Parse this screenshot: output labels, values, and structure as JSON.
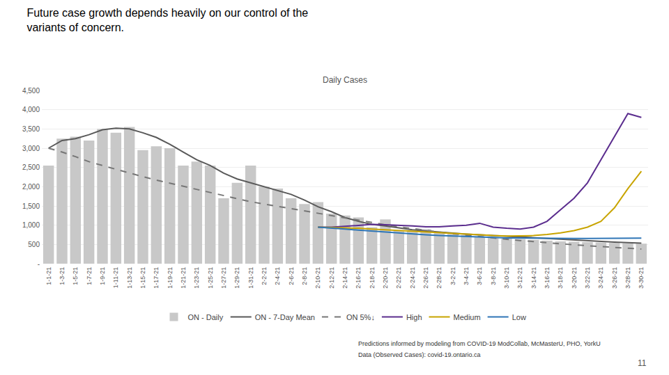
{
  "chart_data": {
    "type": "bar",
    "title": [
      "Future case growth depends heavily on our control of the",
      "variants of concern."
    ],
    "subtitle": "Daily Cases",
    "annotations": [
      "Predictions informed by modeling from COVID-19 ModCollab, McMasterU, PHO, YorkU",
      "Data (Observed Cases): covid-19.ontario.ca",
      "11"
    ],
    "categories": [
      "1-1-21",
      "1-3-21",
      "1-5-21",
      "1-7-21",
      "1-9-21",
      "1-11-21",
      "1-13-21",
      "1-15-21",
      "1-17-21",
      "1-19-21",
      "1-21-21",
      "1-23-21",
      "1-25-21",
      "1-27-21",
      "1-29-21",
      "1-31-21",
      "2-2-21",
      "2-4-21",
      "2-6-21",
      "2-8-21",
      "2-10-21",
      "2-12-21",
      "2-14-21",
      "2-16-21",
      "2-18-21",
      "2-20-21",
      "2-22-21",
      "2-24-21",
      "2-26-21",
      "2-28-21",
      "3-2-21",
      "3-4-21",
      "3-6-21",
      "3-8-21",
      "3-10-21",
      "3-12-21",
      "3-14-21",
      "3-16-21",
      "3-18-21",
      "3-20-21",
      "3-22-21",
      "3-24-21",
      "3-26-21",
      "3-28-21",
      "3-30-21"
    ],
    "series": [
      {
        "name": "ON - Daily",
        "type": "bar",
        "color": "#c8c8c8",
        "values": [
          2550,
          3250,
          3300,
          3200,
          3500,
          3400,
          3550,
          2950,
          3050,
          3000,
          2550,
          2650,
          2550,
          1700,
          2100,
          2550,
          2000,
          1950,
          1700,
          1550,
          1600,
          1300,
          1250,
          1200,
          950,
          1150,
          850,
          850,
          900,
          800,
          780,
          750,
          700,
          680,
          650,
          640,
          620,
          600,
          580,
          570,
          560,
          550,
          540,
          530,
          520
        ]
      },
      {
        "name": "ON - 7-Day Mean",
        "type": "line",
        "color": "#595959",
        "values": [
          3000,
          3200,
          3250,
          3350,
          3480,
          3520,
          3500,
          3400,
          3280,
          3100,
          2900,
          2700,
          2550,
          2350,
          2200,
          2100,
          2000,
          1900,
          1800,
          1650,
          1480,
          1350,
          1200,
          1100,
          1020,
          980,
          930,
          880,
          850,
          820,
          800,
          770,
          750,
          730,
          710,
          690,
          670,
          650,
          630,
          610,
          590,
          575,
          560,
          545,
          535
        ]
      },
      {
        "name": "ON 5%↓",
        "type": "line",
        "line_style": "dashed",
        "color": "#767676",
        "values": [
          3000,
          2900,
          2780,
          2650,
          2550,
          2450,
          2350,
          2260,
          2170,
          2090,
          2010,
          1920,
          1840,
          1760,
          1690,
          1610,
          1550,
          1490,
          1420,
          1360,
          1300,
          1240,
          1180,
          1120,
          1060,
          1010,
          960,
          910,
          865,
          820,
          778,
          740,
          703,
          668,
          634,
          602,
          572,
          543,
          516,
          490,
          466,
          443,
          421,
          400,
          380
        ]
      },
      {
        "name": "High",
        "type": "line",
        "color": "#5b2d8e",
        "values": [
          null,
          null,
          null,
          null,
          null,
          null,
          null,
          null,
          null,
          null,
          null,
          null,
          null,
          null,
          null,
          null,
          null,
          null,
          null,
          null,
          950,
          950,
          970,
          1000,
          1020,
          1010,
          1000,
          980,
          960,
          960,
          980,
          1000,
          1050,
          950,
          920,
          900,
          950,
          1100,
          1400,
          1700,
          2100,
          2700,
          3300,
          3900,
          3800
        ]
      },
      {
        "name": "Medium",
        "type": "line",
        "color": "#c8a400",
        "values": [
          null,
          null,
          null,
          null,
          null,
          null,
          null,
          null,
          null,
          null,
          null,
          null,
          null,
          null,
          null,
          null,
          null,
          null,
          null,
          null,
          950,
          940,
          940,
          920,
          900,
          880,
          860,
          840,
          820,
          800,
          780,
          760,
          750,
          730,
          720,
          720,
          730,
          760,
          800,
          860,
          950,
          1100,
          1450,
          1950,
          2400
        ]
      },
      {
        "name": "Low",
        "type": "line",
        "color": "#2e75b6",
        "values": [
          null,
          null,
          null,
          null,
          null,
          null,
          null,
          null,
          null,
          null,
          null,
          null,
          null,
          null,
          null,
          null,
          null,
          null,
          null,
          null,
          950,
          930,
          900,
          870,
          845,
          815,
          790,
          770,
          750,
          730,
          715,
          700,
          690,
          680,
          670,
          665,
          660,
          658,
          655,
          655,
          655,
          655,
          658,
          660,
          665
        ]
      }
    ],
    "ylim": [
      0,
      4500
    ],
    "yticks": [
      {
        "value": 0,
        "label": "-"
      },
      500,
      {
        "value": 1000,
        "label": "1,000"
      },
      {
        "value": 1500,
        "label": "1,500"
      },
      {
        "value": 2000,
        "label": "2,000"
      },
      {
        "value": 2500,
        "label": "2,500"
      },
      {
        "value": 3000,
        "label": "3,000"
      },
      {
        "value": 3500,
        "label": "3,500"
      },
      {
        "value": 4000,
        "label": "4,000"
      },
      {
        "value": 4500,
        "label": "4,500"
      }
    ],
    "grid": true,
    "legend": "bottom"
  }
}
